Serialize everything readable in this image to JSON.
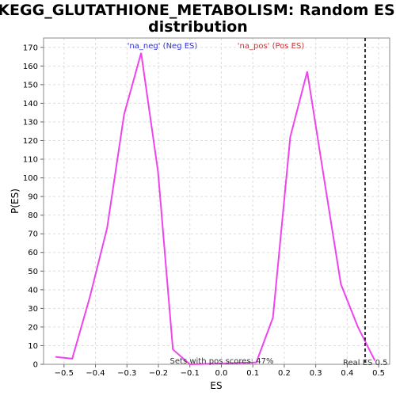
{
  "chart_data": {
    "type": "line",
    "title_lines": [
      "KEGG_GLUTATHIONE_METABOLISM: Random ES",
      "distribution"
    ],
    "xlabel": "ES",
    "ylabel": "P(ES)",
    "xlim": [
      -0.565,
      0.535
    ],
    "ylim": [
      0,
      175
    ],
    "x_ticks": [
      -0.5,
      -0.4,
      -0.3,
      -0.2,
      -0.1,
      0.0,
      0.1,
      0.2,
      0.3,
      0.4,
      0.5
    ],
    "x_tick_labels": [
      "−0.5",
      "−0.4",
      "−0.3",
      "−0.2",
      "−0.1",
      "0.0",
      "0.1",
      "0.2",
      "0.3",
      "0.4",
      "0.5"
    ],
    "y_ticks": [
      0,
      10,
      20,
      30,
      40,
      50,
      60,
      70,
      80,
      90,
      100,
      110,
      120,
      130,
      140,
      150,
      160,
      170
    ],
    "grid": true,
    "series": [
      {
        "name": "",
        "color": "#ee44ee",
        "x": [
          -0.527,
          -0.474,
          -0.418,
          -0.363,
          -0.309,
          -0.255,
          -0.201,
          -0.154,
          -0.1,
          0.111,
          0.164,
          0.219,
          0.273,
          0.327,
          0.38,
          0.434,
          0.488
        ],
        "y": [
          4,
          3,
          36,
          73,
          134,
          167,
          103,
          8,
          0,
          1,
          25,
          122,
          157,
          99,
          43,
          20,
          2
        ]
      }
    ],
    "annotations": {
      "neg_label": "'na_neg' (Neg ES)",
      "pos_label": "'na_pos' (Pos ES)",
      "neg_color": "#3333cc",
      "pos_color": "#cc3333",
      "sets_text": "Sets with pos scores: 47%",
      "real_es_text": "Real ES 0.5",
      "real_es_value": 0.457
    }
  }
}
